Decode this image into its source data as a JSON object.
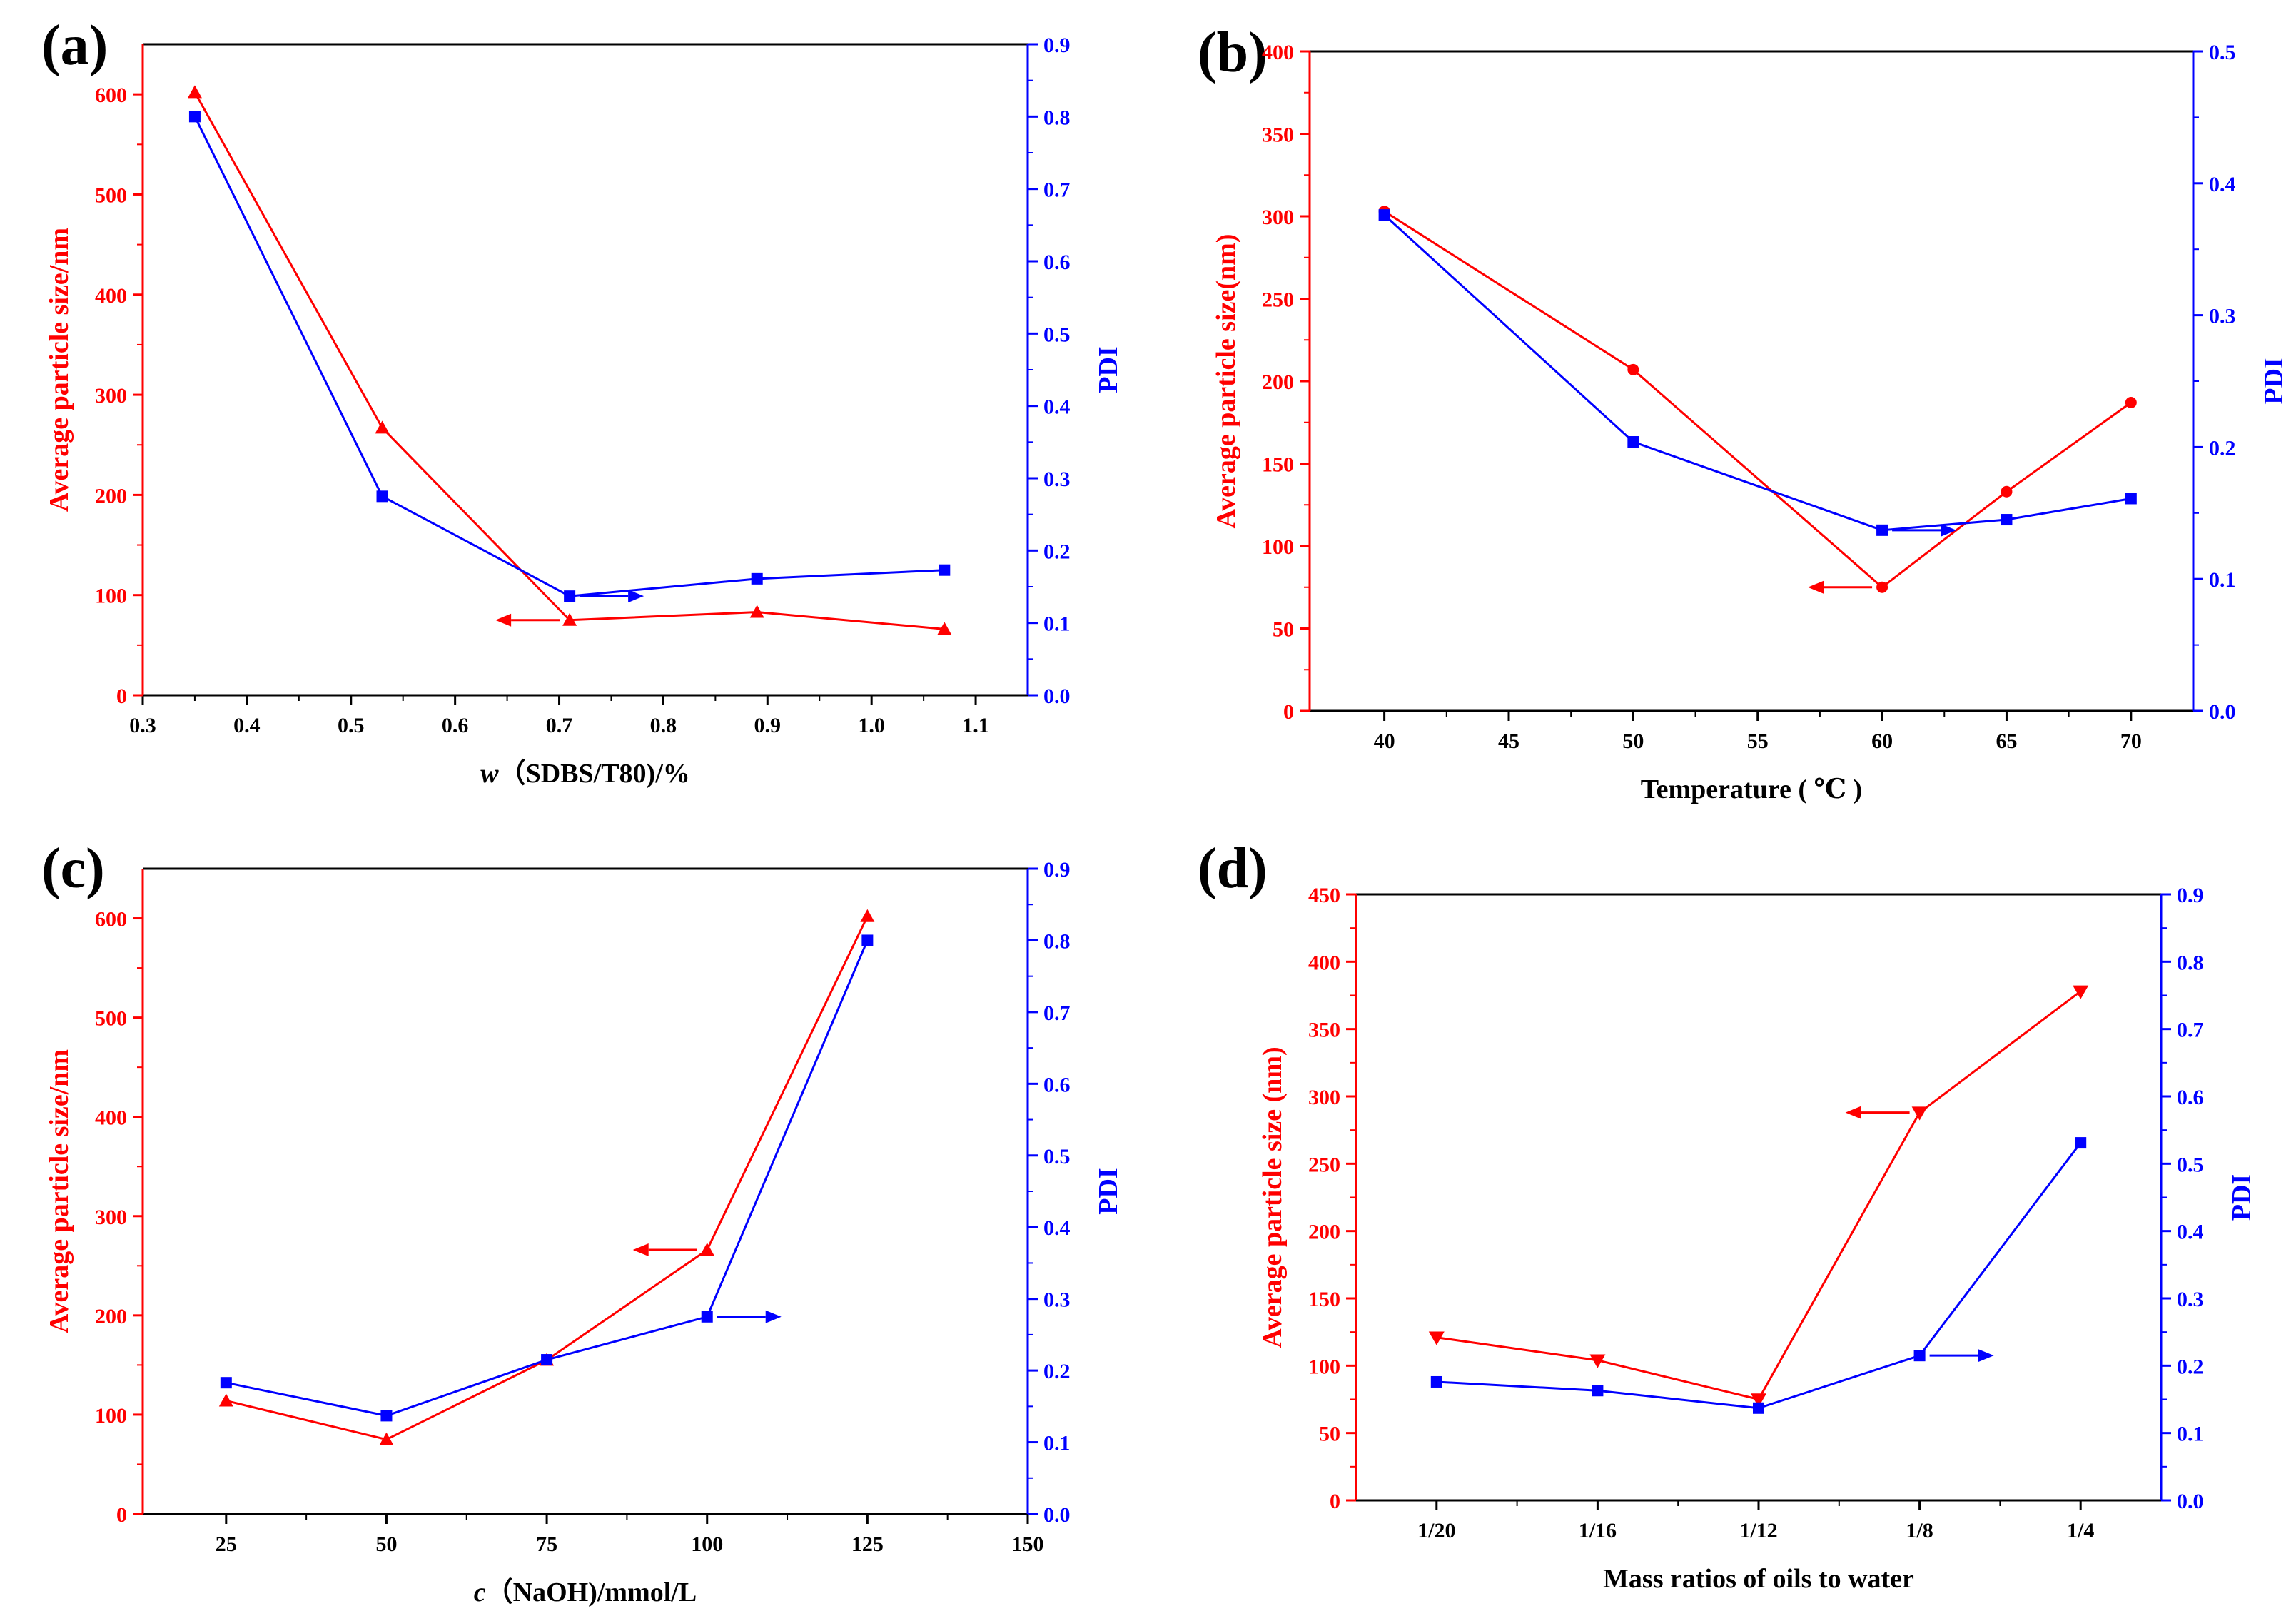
{
  "colors": {
    "left": "#ff0000",
    "right": "#0000ff",
    "axis": "#000000",
    "background": "#ffffff"
  },
  "chart_data": [
    {
      "id": "a",
      "type": "line",
      "panel_label": "(a)",
      "xlabel_italic": "w",
      "xlabel": "（SDBS/T80)/%",
      "ylabel": "Average particle size/nm",
      "y2label": "PDI",
      "xlim": [
        0.3,
        1.15
      ],
      "ylim": [
        0,
        650
      ],
      "y2lim": [
        0,
        0.9
      ],
      "xticks": [
        0.3,
        0.4,
        0.5,
        0.6,
        0.7,
        0.8,
        0.9,
        1.0,
        1.1
      ],
      "xtick_labels": [
        "0.3",
        "0.4",
        "0.5",
        "0.6",
        "0.7",
        "0.8",
        "0.9",
        "1.0",
        "1.1"
      ],
      "yticks": [
        0,
        100,
        200,
        300,
        400,
        500,
        600
      ],
      "y2ticks": [
        0.0,
        0.1,
        0.2,
        0.3,
        0.4,
        0.5,
        0.6,
        0.7,
        0.8,
        0.9
      ],
      "y2tick_labels": [
        "0.0",
        "0.1",
        "0.2",
        "0.3",
        "0.4",
        "0.5",
        "0.6",
        "0.7",
        "0.8",
        "0.9"
      ],
      "series": [
        {
          "name": "Average particle size",
          "axis": "left",
          "marker": "triangle-up",
          "x": [
            0.35,
            0.53,
            0.71,
            0.89,
            1.07
          ],
          "values": [
            602,
            267,
            75,
            83,
            66
          ]
        },
        {
          "name": "PDI",
          "axis": "right",
          "marker": "square",
          "x": [
            0.35,
            0.53,
            0.71,
            0.89,
            1.07
          ],
          "values": [
            0.8,
            0.275,
            0.137,
            0.161,
            0.173
          ]
        }
      ],
      "annotations": [
        {
          "kind": "left-arrow",
          "x": 0.71,
          "y": 75,
          "axis": "left"
        },
        {
          "kind": "right-arrow",
          "x": 0.71,
          "y": 0.137,
          "axis": "right"
        }
      ]
    },
    {
      "id": "b",
      "type": "line",
      "panel_label": "(b)",
      "xlabel": "Temperature ( ℃ )",
      "ylabel": "Average particle size(nm)",
      "y2label": "PDI",
      "xlim": [
        37,
        72.5
      ],
      "ylim": [
        0,
        400
      ],
      "y2lim": [
        0,
        0.5
      ],
      "xticks": [
        40,
        45,
        50,
        55,
        60,
        65,
        70
      ],
      "xtick_labels": [
        "40",
        "45",
        "50",
        "55",
        "60",
        "65",
        "70"
      ],
      "yticks": [
        0,
        50,
        100,
        150,
        200,
        250,
        300,
        350,
        400
      ],
      "y2ticks": [
        0.0,
        0.1,
        0.2,
        0.3,
        0.4,
        0.5
      ],
      "y2tick_labels": [
        "0.0",
        "0.1",
        "0.2",
        "0.3",
        "0.4",
        "0.5"
      ],
      "series": [
        {
          "name": "Average particle size",
          "axis": "left",
          "marker": "circle",
          "x": [
            40,
            50,
            60,
            65,
            70
          ],
          "values": [
            303,
            207,
            75,
            133,
            187
          ]
        },
        {
          "name": "PDI",
          "axis": "right",
          "marker": "square",
          "x": [
            40,
            50,
            60,
            65,
            70
          ],
          "values": [
            0.376,
            0.204,
            0.137,
            0.145,
            0.161
          ]
        }
      ],
      "annotations": [
        {
          "kind": "left-arrow",
          "x": 60,
          "y": 75,
          "axis": "left"
        },
        {
          "kind": "right-arrow",
          "x": 60,
          "y": 0.137,
          "axis": "right"
        }
      ]
    },
    {
      "id": "c",
      "type": "line",
      "panel_label": "(c)",
      "xlabel_italic": "c",
      "xlabel": "（NaOH)/mmol/L",
      "ylabel": "Average particle size/nm",
      "y2label": "PDI",
      "xlim": [
        12,
        150
      ],
      "ylim": [
        0,
        650
      ],
      "y2lim": [
        0,
        0.9
      ],
      "xticks": [
        25,
        50,
        75,
        100,
        125,
        150
      ],
      "xtick_labels": [
        "25",
        "50",
        "75",
        "100",
        "125",
        "150"
      ],
      "yticks": [
        0,
        100,
        200,
        300,
        400,
        500,
        600
      ],
      "y2ticks": [
        0.0,
        0.1,
        0.2,
        0.3,
        0.4,
        0.5,
        0.6,
        0.7,
        0.8,
        0.9
      ],
      "y2tick_labels": [
        "0.0",
        "0.1",
        "0.2",
        "0.3",
        "0.4",
        "0.5",
        "0.6",
        "0.7",
        "0.8",
        "0.9"
      ],
      "series": [
        {
          "name": "Average particle size",
          "axis": "left",
          "marker": "triangle-up",
          "x": [
            25,
            50,
            75,
            100,
            125
          ],
          "values": [
            114,
            75,
            155,
            266,
            602
          ]
        },
        {
          "name": "PDI",
          "axis": "right",
          "marker": "square",
          "x": [
            25,
            50,
            75,
            100,
            125
          ],
          "values": [
            0.183,
            0.137,
            0.215,
            0.275,
            0.8
          ]
        }
      ],
      "annotations": [
        {
          "kind": "left-arrow",
          "x": 100,
          "y": 266,
          "axis": "left"
        },
        {
          "kind": "right-arrow",
          "x": 100,
          "y": 0.275,
          "axis": "right"
        }
      ]
    },
    {
      "id": "d",
      "type": "line",
      "panel_label": "(d)",
      "xlabel": "Mass ratios of oils to water",
      "ylabel": "Average particle size (nm)",
      "y2label": "PDI",
      "xlim": [
        0.5,
        5.5
      ],
      "ylim": [
        0,
        450
      ],
      "y2lim": [
        0,
        0.9
      ],
      "xticks": [
        1,
        2,
        3,
        4,
        5
      ],
      "xtick_labels": [
        "1/20",
        "1/16",
        "1/12",
        "1/8",
        "1/4"
      ],
      "yticks": [
        0,
        50,
        100,
        150,
        200,
        250,
        300,
        350,
        400,
        450
      ],
      "y2ticks": [
        0.0,
        0.1,
        0.2,
        0.3,
        0.4,
        0.5,
        0.6,
        0.7,
        0.8,
        0.9
      ],
      "y2tick_labels": [
        "0.0",
        "0.1",
        "0.2",
        "0.3",
        "0.4",
        "0.5",
        "0.6",
        "0.7",
        "0.8",
        "0.9"
      ],
      "series": [
        {
          "name": "Average particle size",
          "axis": "left",
          "marker": "triangle-down",
          "x": [
            1,
            2,
            3,
            4,
            5
          ],
          "values": [
            121,
            104,
            75,
            288,
            378
          ]
        },
        {
          "name": "PDI",
          "axis": "right",
          "marker": "square",
          "x": [
            1,
            2,
            3,
            4,
            5
          ],
          "values": [
            0.176,
            0.163,
            0.137,
            0.215,
            0.531
          ]
        }
      ],
      "annotations": [
        {
          "kind": "left-arrow",
          "x": 4,
          "y": 288,
          "axis": "left"
        },
        {
          "kind": "right-arrow",
          "x": 4,
          "y": 0.215,
          "axis": "right"
        }
      ]
    }
  ]
}
